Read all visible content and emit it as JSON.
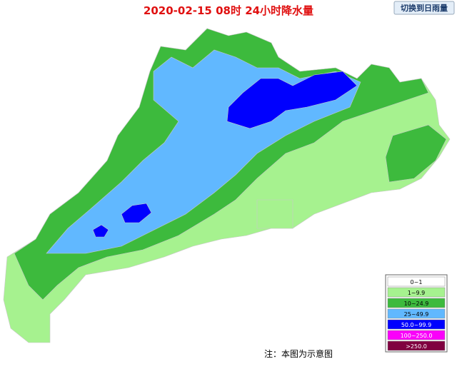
{
  "header": {
    "title": "2020-02-15 08时 24小时降水量",
    "switch_button": "切换到日雨量"
  },
  "legend": {
    "items": [
      {
        "label": "0~1",
        "color": "#ffffff",
        "text_color": "#000000"
      },
      {
        "label": "1~9.9",
        "color": "#a6f28f",
        "text_color": "#000000"
      },
      {
        "label": "10~24.9",
        "color": "#3dba3d",
        "text_color": "#000000"
      },
      {
        "label": "25~49.9",
        "color": "#61b8ff",
        "text_color": "#000000"
      },
      {
        "label": "50.0~99.9",
        "color": "#0000fe",
        "text_color": "#ffffff"
      },
      {
        "label": "100~250.0",
        "color": "#fa00fa",
        "text_color": "#ffffff"
      },
      {
        "label": ">250.0",
        "color": "#800040",
        "text_color": "#ffffff"
      }
    ]
  },
  "note": "注：本图为示意图"
}
